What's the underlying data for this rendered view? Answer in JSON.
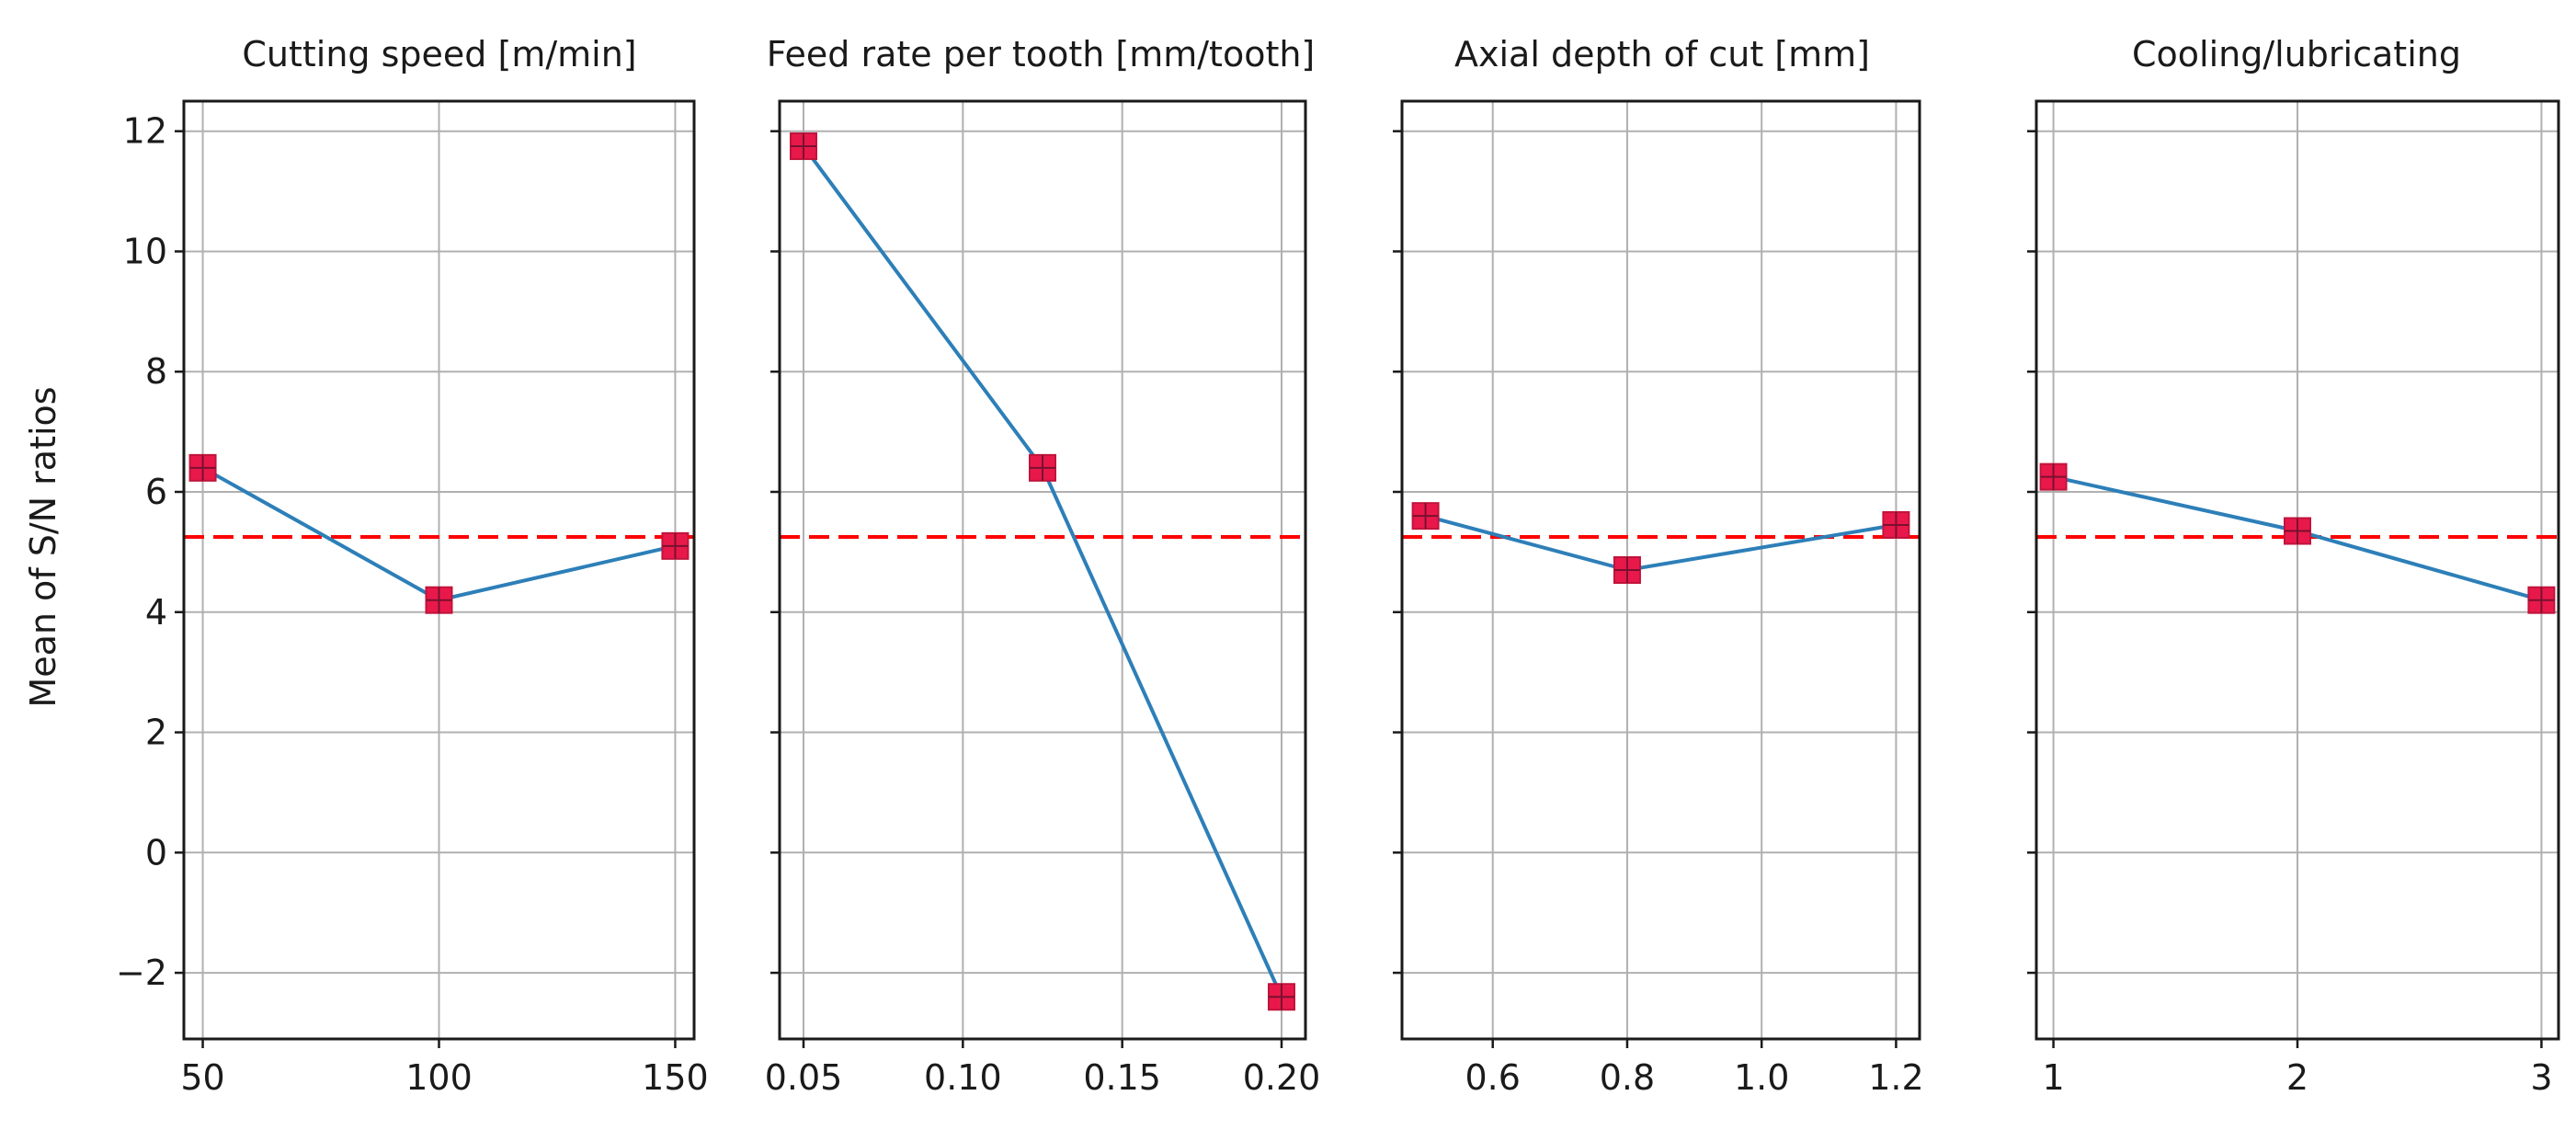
{
  "chart_data": [
    {
      "type": "line",
      "title": "Cutting speed [m/min]",
      "ylabel": "Mean of S/N ratios",
      "x": [
        50,
        100,
        150
      ],
      "values": [
        6.4,
        4.2,
        5.1
      ],
      "xlim": [
        46,
        154
      ],
      "xticks": [
        50,
        100,
        150
      ],
      "xtick_labels": [
        "50",
        "100",
        "150"
      ],
      "ylim": [
        -3.1,
        12.5
      ],
      "yticks": [
        -2,
        0,
        2,
        4,
        6,
        8,
        10,
        12
      ],
      "ytick_labels": [
        "−2",
        "0",
        "2",
        "4",
        "6",
        "8",
        "10",
        "12"
      ],
      "mean_line": 5.25,
      "grid": true
    },
    {
      "type": "line",
      "title": "Feed rate per tooth [mm/tooth]",
      "x": [
        0.05,
        0.125,
        0.2
      ],
      "values": [
        11.75,
        6.4,
        -2.4
      ],
      "xlim": [
        0.0425,
        0.2075
      ],
      "xticks": [
        0.05,
        0.1,
        0.15,
        0.2
      ],
      "xtick_labels": [
        "0.05",
        "0.10",
        "0.15",
        "0.20"
      ],
      "ylim": [
        -3.1,
        12.5
      ],
      "yticks": [
        -2,
        0,
        2,
        4,
        6,
        8,
        10,
        12
      ],
      "mean_line": 5.25,
      "grid": true
    },
    {
      "type": "line",
      "title": "Axial depth of cut [mm]",
      "x": [
        0.5,
        0.8,
        1.2
      ],
      "values": [
        5.6,
        4.7,
        5.45
      ],
      "xlim": [
        0.465,
        1.235
      ],
      "xticks": [
        0.6,
        0.8,
        1.0,
        1.2
      ],
      "xtick_labels": [
        "0.6",
        "0.8",
        "1.0",
        "1.2"
      ],
      "ylim": [
        -3.1,
        12.5
      ],
      "yticks": [
        -2,
        0,
        2,
        4,
        6,
        8,
        10,
        12
      ],
      "mean_line": 5.25,
      "grid": true
    },
    {
      "type": "line",
      "title": "Cooling/lubricating",
      "x": [
        1,
        2,
        3
      ],
      "values": [
        6.25,
        5.35,
        4.2
      ],
      "xlim": [
        0.93,
        3.07
      ],
      "xticks": [
        1,
        2,
        3
      ],
      "xtick_labels": [
        "1",
        "2",
        "3"
      ],
      "ylim": [
        -3.1,
        12.5
      ],
      "yticks": [
        -2,
        0,
        2,
        4,
        6,
        8,
        10,
        12
      ],
      "mean_line": 5.25,
      "grid": true
    }
  ],
  "colors": {
    "line": "#2d7fb8",
    "marker_face": "#e8194a",
    "marker_edge": "#c0143c",
    "mean_line": "#ff0000"
  }
}
